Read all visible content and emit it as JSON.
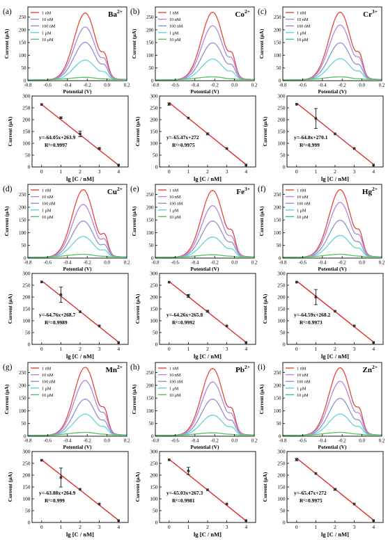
{
  "legend": [
    "1 nM",
    "10 nM",
    "100 nM",
    "1 μM",
    "10 μM"
  ],
  "colors": {
    "1 nM": "#e8443c",
    "10 nM": "#b086d8",
    "100 nM": "#9090d0",
    "1 μM": "#5fd6d0",
    "10 μM": "#55c060",
    "fit": "#e02020",
    "marker": "#333333",
    "axis": "#000000"
  },
  "top_axes": {
    "xlabel": "Potential (V)",
    "ylabel": "Current (μA)",
    "xticks": [
      "-0.8",
      "-0.6",
      "-0.4",
      "-0.2",
      "0.0",
      "0.2"
    ],
    "yticks": [
      "0",
      "50",
      "100",
      "150",
      "200",
      "250"
    ]
  },
  "bottom_axes": {
    "xlabel": "lg [C / nM]",
    "ylabel": "Current (μA)",
    "xticks": [
      "0",
      "1",
      "2",
      "3",
      "4"
    ],
    "yticks": [
      "0",
      "50",
      "100",
      "150",
      "200",
      "250",
      "300"
    ]
  },
  "chart_data": [
    {
      "panel": "(a)",
      "ion": "Ba",
      "charge": "2+",
      "type": "line",
      "xlabel": "Potential (V)",
      "ylabel": "Current (μA)",
      "xlim": [
        -0.8,
        0.2
      ],
      "ylim": [
        0,
        290
      ],
      "peak_x": -0.22,
      "series": [
        {
          "name": "1 nM",
          "peak": 265
        },
        {
          "name": "10 nM",
          "peak": 210
        },
        {
          "name": "100 nM",
          "peak": 150
        },
        {
          "name": "1 μM",
          "peak": 80
        },
        {
          "name": "10 μM",
          "peak": 12
        }
      ],
      "equation": "y=-64.05x+263.9",
      "r2": "R²=0.9997",
      "calibration": {
        "type": "scatter",
        "xlabel": "lg [C / nM]",
        "ylabel": "Current (μA)",
        "xlim": [
          -0.5,
          4.5
        ],
        "ylim": [
          0,
          300
        ],
        "x": [
          0,
          1,
          2,
          3,
          4
        ],
        "y": [
          264,
          208,
          140,
          78,
          8
        ],
        "err": [
          2,
          4,
          12,
          4,
          2
        ]
      }
    },
    {
      "panel": "(b)",
      "ion": "Co",
      "charge": "2+",
      "type": "line",
      "xlabel": "Potential (V)",
      "ylabel": "Current (μA)",
      "xlim": [
        -0.8,
        0.2
      ],
      "ylim": [
        0,
        290
      ],
      "peak_x": -0.22,
      "series": [
        {
          "name": "1 nM",
          "peak": 268
        },
        {
          "name": "10 nM",
          "peak": 215
        },
        {
          "name": "100 nM",
          "peak": 148
        },
        {
          "name": "1 μM",
          "peak": 84
        },
        {
          "name": "10 μM",
          "peak": 14
        }
      ],
      "equation": "y=-65.47x+272",
      "r2": "R²=0.9975",
      "calibration": {
        "type": "scatter",
        "xlabel": "lg [C / nM]",
        "ylabel": "Current (μA)",
        "xlim": [
          -0.5,
          4.5
        ],
        "ylim": [
          0,
          300
        ],
        "x": [
          0,
          1,
          2,
          3,
          4
        ],
        "y": [
          266,
          207,
          140,
          78,
          8
        ],
        "err": [
          5,
          3,
          4,
          3,
          2
        ]
      }
    },
    {
      "panel": "(c)",
      "ion": "Cr",
      "charge": "3+",
      "type": "line",
      "xlabel": "Potential (V)",
      "ylabel": "Current (μA)",
      "xlim": [
        -0.8,
        0.2
      ],
      "ylim": [
        0,
        290
      ],
      "peak_x": -0.22,
      "series": [
        {
          "name": "1 nM",
          "peak": 268
        },
        {
          "name": "10 nM",
          "peak": 218
        },
        {
          "name": "100 nM",
          "peak": 148
        },
        {
          "name": "1 μM",
          "peak": 86
        },
        {
          "name": "10 μM",
          "peak": 14
        }
      ],
      "equation": "y=-64.8x+270.1",
      "r2": "R²=0.999",
      "calibration": {
        "type": "scatter",
        "xlabel": "lg [C / nM]",
        "ylabel": "Current (μA)",
        "xlim": [
          -0.5,
          4.5
        ],
        "ylim": [
          0,
          300
        ],
        "x": [
          0,
          1,
          2,
          3,
          4
        ],
        "y": [
          265,
          205,
          140,
          78,
          8
        ],
        "err": [
          3,
          42,
          3,
          3,
          2
        ]
      }
    },
    {
      "panel": "(d)",
      "ion": "Cu",
      "charge": "2+",
      "type": "line",
      "xlabel": "Potential (V)",
      "ylabel": "Current (μA)",
      "xlim": [
        -0.8,
        0.2
      ],
      "ylim": [
        0,
        290
      ],
      "peak_x": -0.24,
      "series": [
        {
          "name": "1 nM",
          "peak": 268
        },
        {
          "name": "10 nM",
          "peak": 210
        },
        {
          "name": "100 nM",
          "peak": 145
        },
        {
          "name": "1 μM",
          "peak": 84
        },
        {
          "name": "10 μM",
          "peak": 14
        }
      ],
      "equation": "y=-64.76x+268.7",
      "r2": "R²=0.9989",
      "calibration": {
        "type": "scatter",
        "xlabel": "lg [C / nM]",
        "ylabel": "Current (μA)",
        "xlim": [
          -0.5,
          4.5
        ],
        "ylim": [
          0,
          300
        ],
        "x": [
          0,
          1,
          2,
          3,
          4
        ],
        "y": [
          264,
          210,
          138,
          78,
          8
        ],
        "err": [
          3,
          32,
          3,
          3,
          2
        ]
      }
    },
    {
      "panel": "(e)",
      "ion": "Fe",
      "charge": "3+",
      "type": "line",
      "xlabel": "Potential (V)",
      "ylabel": "Current (μA)",
      "xlim": [
        -0.8,
        0.2
      ],
      "ylim": [
        0,
        290
      ],
      "peak_x": -0.22,
      "series": [
        {
          "name": "1 nM",
          "peak": 265
        },
        {
          "name": "10 nM",
          "peak": 205
        },
        {
          "name": "100 nM",
          "peak": 145
        },
        {
          "name": "1 μM",
          "peak": 82
        },
        {
          "name": "10 μM",
          "peak": 12
        }
      ],
      "equation": "y=-64.26x+265.8",
      "r2": "R²=0.9992",
      "calibration": {
        "type": "scatter",
        "xlabel": "lg [C / nM]",
        "ylabel": "Current (μA)",
        "xlim": [
          -0.5,
          4.5
        ],
        "ylim": [
          0,
          300
        ],
        "x": [
          0,
          1,
          2,
          3,
          4
        ],
        "y": [
          263,
          205,
          140,
          78,
          8
        ],
        "err": [
          2,
          6,
          4,
          3,
          2
        ]
      }
    },
    {
      "panel": "(f)",
      "ion": "Hg",
      "charge": "2+",
      "type": "line",
      "xlabel": "Potential (V)",
      "ylabel": "Current (μA)",
      "xlim": [
        -0.8,
        0.2
      ],
      "ylim": [
        0,
        290
      ],
      "peak_x": -0.22,
      "series": [
        {
          "name": "1 nM",
          "peak": 268
        },
        {
          "name": "10 nM",
          "peak": 218
        },
        {
          "name": "100 nM",
          "peak": 148
        },
        {
          "name": "1 μM",
          "peak": 88
        },
        {
          "name": "10 μM",
          "peak": 14
        }
      ],
      "equation": "y=-64.59x+268.2",
      "r2": "R²=0.9973",
      "calibration": {
        "type": "scatter",
        "xlabel": "lg [C / nM]",
        "ylabel": "Current (μA)",
        "xlim": [
          -0.5,
          4.5
        ],
        "ylim": [
          0,
          300
        ],
        "x": [
          0,
          1,
          2,
          3,
          4
        ],
        "y": [
          263,
          200,
          140,
          78,
          8
        ],
        "err": [
          2,
          32,
          3,
          3,
          2
        ]
      }
    },
    {
      "panel": "(g)",
      "ion": "Mn",
      "charge": "2+",
      "type": "line",
      "xlabel": "Potential (V)",
      "ylabel": "Current (μA)",
      "xlim": [
        -0.8,
        0.2
      ],
      "ylim": [
        0,
        290
      ],
      "peak_x": -0.22,
      "series": [
        {
          "name": "1 nM",
          "peak": 270
        },
        {
          "name": "10 nM",
          "peak": 218
        },
        {
          "name": "100 nM",
          "peak": 145
        },
        {
          "name": "1 μM",
          "peak": 86
        },
        {
          "name": "10 μM",
          "peak": 14
        }
      ],
      "equation": "y=-63.88x+264.9",
      "r2": "R²=0.999",
      "calibration": {
        "type": "scatter",
        "xlabel": "lg [C / nM]",
        "ylabel": "Current (μA)",
        "xlim": [
          -0.5,
          4.5
        ],
        "ylim": [
          0,
          300
        ],
        "x": [
          0,
          1,
          2,
          3,
          4
        ],
        "y": [
          263,
          190,
          140,
          78,
          8
        ],
        "err": [
          2,
          40,
          3,
          3,
          2
        ]
      }
    },
    {
      "panel": "(h)",
      "ion": "Pb",
      "charge": "2+",
      "type": "line",
      "xlabel": "Potential (V)",
      "ylabel": "Current (μA)",
      "xlim": [
        -0.8,
        0.2
      ],
      "ylim": [
        0,
        290
      ],
      "peak_x": -0.22,
      "series": [
        {
          "name": "1 nM",
          "peak": 265
        },
        {
          "name": "10 nM",
          "peak": 212
        },
        {
          "name": "100 nM",
          "peak": 145
        },
        {
          "name": "1 μM",
          "peak": 82
        },
        {
          "name": "10 μM",
          "peak": 12
        }
      ],
      "equation": "y=-65.03x+267.3",
      "r2": "R²=0.9981",
      "calibration": {
        "type": "scatter",
        "xlabel": "lg [C / nM]",
        "ylabel": "Current (μA)",
        "xlim": [
          -0.5,
          4.5
        ],
        "ylim": [
          0,
          300
        ],
        "x": [
          0,
          1,
          2,
          3,
          4
        ],
        "y": [
          265,
          218,
          138,
          78,
          8
        ],
        "err": [
          3,
          15,
          3,
          3,
          2
        ]
      }
    },
    {
      "panel": "(i)",
      "ion": "Zn",
      "charge": "2+",
      "type": "line",
      "xlabel": "Potential (V)",
      "ylabel": "Current (μA)",
      "xlim": [
        -0.8,
        0.2
      ],
      "ylim": [
        0,
        290
      ],
      "peak_x": -0.22,
      "series": [
        {
          "name": "1 nM",
          "peak": 268
        },
        {
          "name": "10 nM",
          "peak": 215
        },
        {
          "name": "100 nM",
          "peak": 148
        },
        {
          "name": "1 μM",
          "peak": 86
        },
        {
          "name": "10 μM",
          "peak": 14
        }
      ],
      "equation": "y=-65.47x+272",
      "r2": "R²=0.9975",
      "calibration": {
        "type": "scatter",
        "xlabel": "lg [C / nM]",
        "ylabel": "Current (μA)",
        "xlim": [
          -0.5,
          4.5
        ],
        "ylim": [
          0,
          300
        ],
        "x": [
          0,
          1,
          2,
          3,
          4
        ],
        "y": [
          266,
          207,
          140,
          78,
          8
        ],
        "err": [
          5,
          3,
          4,
          3,
          2
        ]
      }
    }
  ]
}
